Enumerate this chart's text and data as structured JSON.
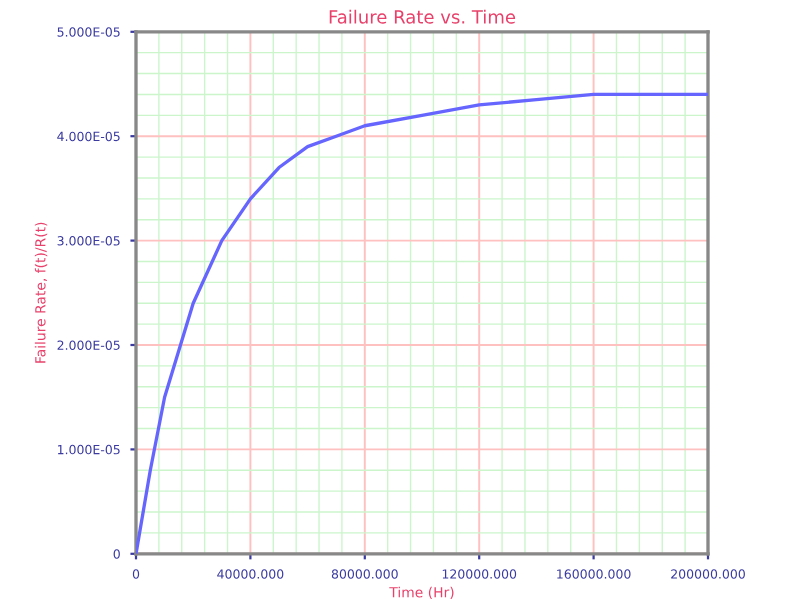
{
  "chart_data": {
    "type": "line",
    "title": "Failure Rate vs. Time",
    "xlabel": "Time (Hr)",
    "ylabel": "Failure Rate, f(t)/R(t)",
    "x": [
      0,
      5000,
      10000,
      20000,
      30000,
      40000,
      50000,
      60000,
      70000,
      80000,
      100000,
      120000,
      140000,
      160000,
      180000,
      200000
    ],
    "series": [
      {
        "color": "#6666ff",
        "values": [
          0,
          8e-06,
          1.5e-05,
          2.4e-05,
          3e-05,
          3.4e-05,
          3.7e-05,
          3.9e-05,
          4e-05,
          4.1e-05,
          4.2e-05,
          4.3e-05,
          4.35e-05,
          4.4e-05,
          4.4e-05,
          4.4e-05
        ]
      }
    ],
    "xlim": [
      0,
      200000
    ],
    "xticks": [
      0,
      {
        "value": 8000,
        "label": null
      },
      {
        "value": 16000,
        "label": null
      },
      {
        "value": 24000,
        "label": null
      },
      {
        "value": 32000,
        "label": null
      },
      {
        "value": 40000,
        "label": "40000.000"
      },
      {
        "value": 48000,
        "label": null
      },
      {
        "value": 56000,
        "label": null
      },
      {
        "value": 64000,
        "label": null
      },
      {
        "value": 72000,
        "label": null
      },
      {
        "value": 80000,
        "label": "80000.000"
      },
      {
        "value": 88000,
        "label": null
      },
      {
        "value": 96000,
        "label": null
      },
      {
        "value": 104000,
        "label": null
      },
      {
        "value": 112000,
        "label": null
      },
      {
        "value": 120000,
        "label": "120000.000"
      },
      {
        "value": 128000,
        "label": null
      },
      {
        "value": 136000,
        "label": null
      },
      {
        "value": 144000,
        "label": null
      },
      {
        "value": 152000,
        "label": null
      },
      {
        "value": 160000,
        "label": "160000.000"
      },
      {
        "value": 168000,
        "label": null
      },
      {
        "value": 176000,
        "label": null
      },
      {
        "value": 184000,
        "label": null
      },
      {
        "value": 192000,
        "label": null
      },
      {
        "value": 200000,
        "label": "200000.000"
      }
    ],
    "ylim": [
      0,
      5e-05
    ],
    "yticks": [
      0,
      {
        "value": 2e-06,
        "label": null
      },
      {
        "value": 4e-06,
        "label": null
      },
      {
        "value": 6e-06,
        "label": null
      },
      {
        "value": 8e-06,
        "label": null
      },
      {
        "value": 1e-05,
        "label": "1.000E-05"
      },
      {
        "value": 1.2e-05,
        "label": null
      },
      {
        "value": 1.4e-05,
        "label": null
      },
      {
        "value": 1.6e-05,
        "label": null
      },
      {
        "value": 1.8e-05,
        "label": null
      },
      {
        "value": 2e-05,
        "label": "2.000E-05"
      },
      {
        "value": 2.2e-05,
        "label": null
      },
      {
        "value": 2.4e-05,
        "label": null
      },
      {
        "value": 2.6e-05,
        "label": null
      },
      {
        "value": 2.8e-05,
        "label": null
      },
      {
        "value": 3e-05,
        "label": "3.000E-05"
      },
      {
        "value": 3.2e-05,
        "label": null
      },
      {
        "value": 3.4e-05,
        "label": null
      },
      {
        "value": 3.6e-05,
        "label": null
      },
      {
        "value": 3.8e-05,
        "label": null
      },
      {
        "value": 4e-05,
        "label": "4.000E-05"
      },
      {
        "value": 4.2e-05,
        "label": null
      },
      {
        "value": 4.4e-05,
        "label": null
      },
      {
        "value": 4.6e-05,
        "label": null
      },
      {
        "value": 4.8e-05,
        "label": null
      },
      {
        "value": 5e-05,
        "label": "5.000E-05"
      }
    ],
    "grid": true,
    "marker": "none",
    "line_style": "solid"
  }
}
